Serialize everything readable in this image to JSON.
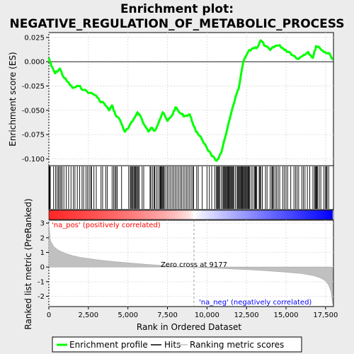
{
  "chart_data": {
    "type": "line",
    "title_line1": "Enrichment plot:",
    "title_line2": "NEGATIVE_REGULATION_OF_METABOLIC_PROCESS",
    "top_panel": {
      "ylabel": "Enrichment score (ES)",
      "ylim": [
        -0.107,
        0.03
      ],
      "yticks": [
        0.025,
        0.0,
        -0.025,
        -0.05,
        -0.075,
        -0.1
      ],
      "ytick_labels": [
        "0.025",
        "0.000",
        "-0.025",
        "-0.050",
        "-0.075",
        "-0.100"
      ],
      "series_name": "Enrichment profile",
      "line_color": "#00ff00",
      "profile_x": [
        0,
        150,
        400,
        700,
        900,
        1200,
        1500,
        1900,
        2200,
        2600,
        3000,
        3200,
        3500,
        3800,
        4000,
        4200,
        4500,
        4800,
        5000,
        5300,
        5600,
        5800,
        6000,
        6300,
        6500,
        6700,
        7000,
        7200,
        7500,
        7800,
        8000,
        8300,
        8600,
        8900,
        9100,
        9300,
        9600,
        10000,
        10300,
        10600,
        10900,
        11200,
        11500,
        11800,
        12000,
        12300,
        12600,
        12900,
        13200,
        13400,
        13700,
        14000,
        14300,
        14600,
        14900,
        15200,
        15500,
        15800,
        16100,
        16400,
        16700,
        16900,
        17100,
        17400,
        17700,
        17950
      ],
      "profile_y": [
        0.004,
        -0.004,
        -0.012,
        -0.007,
        -0.015,
        -0.021,
        -0.027,
        -0.025,
        -0.029,
        -0.032,
        -0.035,
        -0.04,
        -0.043,
        -0.05,
        -0.045,
        -0.054,
        -0.06,
        -0.072,
        -0.069,
        -0.061,
        -0.052,
        -0.056,
        -0.064,
        -0.072,
        -0.068,
        -0.071,
        -0.06,
        -0.052,
        -0.061,
        -0.055,
        -0.047,
        -0.053,
        -0.056,
        -0.054,
        -0.063,
        -0.072,
        -0.077,
        -0.089,
        -0.097,
        -0.102,
        -0.094,
        -0.075,
        -0.055,
        -0.037,
        -0.028,
        0.0,
        0.01,
        0.014,
        0.015,
        0.022,
        0.016,
        0.012,
        0.016,
        0.017,
        0.012,
        0.01,
        0.006,
        0.003,
        0.007,
        0.01,
        0.004,
        0.016,
        0.015,
        0.01,
        0.009,
        0.002
      ]
    },
    "hits_panel": {
      "series_name": "Hits",
      "hit_positions": [
        30,
        60,
        90,
        300,
        420,
        520,
        600,
        680,
        760,
        840,
        950,
        1100,
        1250,
        1400,
        1550,
        1650,
        1800,
        1950,
        2100,
        2200,
        2350,
        2450,
        2550,
        2650,
        2700,
        2850,
        3000,
        3300,
        3400,
        3600,
        3700,
        4000,
        4100,
        4180,
        4250,
        4320,
        4600,
        5050,
        5150,
        5200,
        5260,
        5320,
        5380,
        5430,
        5480,
        5540,
        5600,
        5650,
        5720,
        5900,
        6000,
        6400,
        6450,
        6550,
        6650,
        6700,
        6800,
        6900,
        7000,
        7050,
        7100,
        7150,
        7200,
        7250,
        7300,
        7400,
        7500,
        7600,
        7700,
        7800,
        7900,
        8000,
        8100,
        8200,
        8300,
        8400,
        8500,
        8600,
        8700,
        8800,
        8900,
        9000,
        9100,
        9150,
        9350,
        9450,
        9700,
        10000,
        10150,
        10300,
        10500,
        10600,
        10650,
        10700,
        10750,
        10800,
        10900,
        11000,
        11050,
        11100,
        11150,
        11200,
        11250,
        11300,
        11350,
        11400,
        11450,
        11500,
        11550,
        11600,
        11650,
        11700,
        11800,
        11900,
        11950,
        12000,
        12050,
        12100,
        12150,
        12200,
        12250,
        12300,
        12350,
        12400,
        12450,
        12500,
        12550,
        12600,
        12650,
        12700,
        12800,
        12900,
        13000,
        13050,
        13100,
        13150,
        13300,
        13350,
        13400,
        13500,
        13700,
        13800,
        14000,
        14100,
        14150,
        14200,
        14300,
        14400,
        14500,
        14600,
        14800,
        14900,
        15000,
        15100,
        15300,
        15500,
        15600,
        15700,
        15800,
        16000,
        16100,
        16200,
        16350,
        16500,
        16700,
        16800,
        16850,
        16900,
        16950,
        17000,
        17100,
        17200,
        17400,
        17500,
        17550,
        17600,
        17700
      ]
    },
    "ranked_panel": {
      "ylabel": "Ranked list metric (PreRanked)",
      "ylim": [
        -2.7,
        3.2
      ],
      "yticks": [
        3,
        2,
        1,
        0,
        -1,
        -2
      ],
      "ytick_labels": [
        "3",
        "2",
        "1",
        "0",
        "-1",
        "-2"
      ],
      "series_name": "Ranking metric scores",
      "metric_x": [
        0,
        100,
        300,
        600,
        1000,
        1500,
        2000,
        3000,
        4000,
        5000,
        6000,
        7000,
        8000,
        9177,
        10000,
        11000,
        12000,
        13000,
        14000,
        15000,
        16000,
        16800,
        17200,
        17500,
        17700,
        17850,
        17950
      ],
      "metric_y": [
        3.0,
        1.8,
        1.4,
        1.15,
        0.95,
        0.78,
        0.66,
        0.5,
        0.38,
        0.29,
        0.2,
        0.12,
        0.06,
        0.0,
        -0.05,
        -0.1,
        -0.15,
        -0.2,
        -0.27,
        -0.35,
        -0.45,
        -0.6,
        -0.75,
        -0.95,
        -1.25,
        -1.7,
        -2.55
      ],
      "pos_label": "'na_pos' (positively correlated)",
      "neg_label": "'na_neg' (negatively correlated)",
      "zero_cross_label": "Zero cross at 9177",
      "zero_cross": 9177
    },
    "xaxis": {
      "xlabel": "Rank in Ordered Dataset",
      "xlim": [
        0,
        18000
      ],
      "xticks": [
        0,
        2500,
        5000,
        7500,
        10000,
        12500,
        15000,
        17500
      ],
      "xtick_labels": [
        "0",
        "2,500",
        "5,000",
        "7,500",
        "10,000",
        "12,500",
        "15,000",
        "17,500"
      ],
      "n_genes": 17950
    },
    "legend": {
      "items": [
        "Enrichment profile",
        "Hits",
        "Ranking metric scores"
      ],
      "placement": "bottom"
    },
    "grid": true,
    "colors": {
      "profile": "#00ff00",
      "hits": "#000000",
      "metric_fill": "#c0c0c0",
      "pos_text": "#ff0000",
      "neg_text": "#0000ff",
      "heat_pos": "#ff0000",
      "heat_neg": "#0000ff"
    }
  }
}
